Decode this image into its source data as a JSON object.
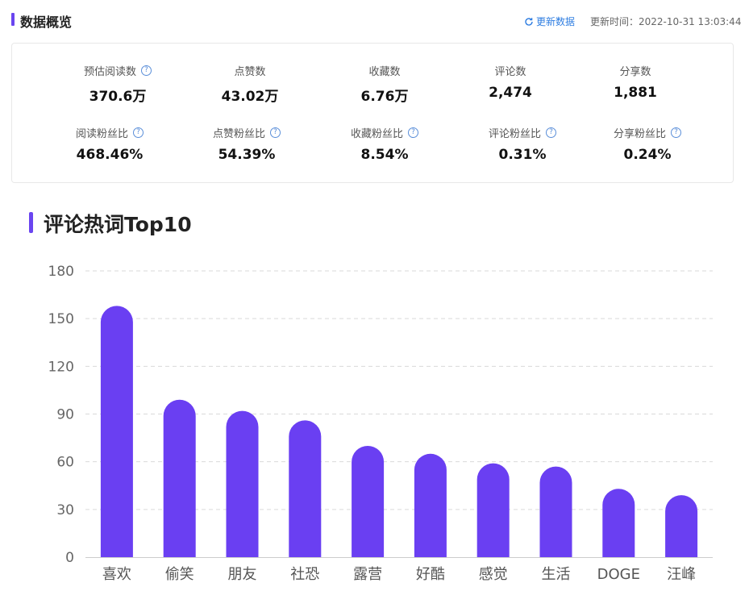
{
  "header": {
    "title": "数据概览",
    "refresh_label": "更新数据",
    "update_time": "更新时间：2022-10-31 13:03:44"
  },
  "stats": {
    "row1": [
      {
        "label": "预估阅读数",
        "value": "370.6万",
        "help": true
      },
      {
        "label": "点赞数",
        "value": "43.02万",
        "help": false
      },
      {
        "label": "收藏数",
        "value": "6.76万",
        "help": false
      },
      {
        "label": "评论数",
        "value": "2,474",
        "help": false
      },
      {
        "label": "分享数",
        "value": "1,881",
        "help": false
      }
    ],
    "row2": [
      {
        "label": "阅读粉丝比",
        "value": "468.46%",
        "help": true
      },
      {
        "label": "点赞粉丝比",
        "value": "54.39%",
        "help": true
      },
      {
        "label": "收藏粉丝比",
        "value": "8.54%",
        "help": true
      },
      {
        "label": "评论粉丝比",
        "value": "0.31%",
        "help": true
      },
      {
        "label": "分享粉丝比",
        "value": "0.24%",
        "help": true
      }
    ]
  },
  "colors": {
    "accent": "#6a45f0",
    "bar": "#6a3ff2",
    "link": "#2e7de1"
  },
  "chart_data": {
    "type": "bar",
    "title": "评论热词Top10",
    "categories": [
      "喜欢",
      "偷笑",
      "朋友",
      "社恐",
      "露营",
      "好酷",
      "感觉",
      "生活",
      "DOGE",
      "汪峰"
    ],
    "values": [
      158,
      99,
      92,
      86,
      70,
      65,
      59,
      57,
      43,
      39
    ],
    "ylim": [
      0,
      180
    ],
    "yticks": [
      0,
      30,
      60,
      90,
      120,
      150,
      180
    ],
    "grid": true,
    "xlabel": "",
    "ylabel": ""
  }
}
